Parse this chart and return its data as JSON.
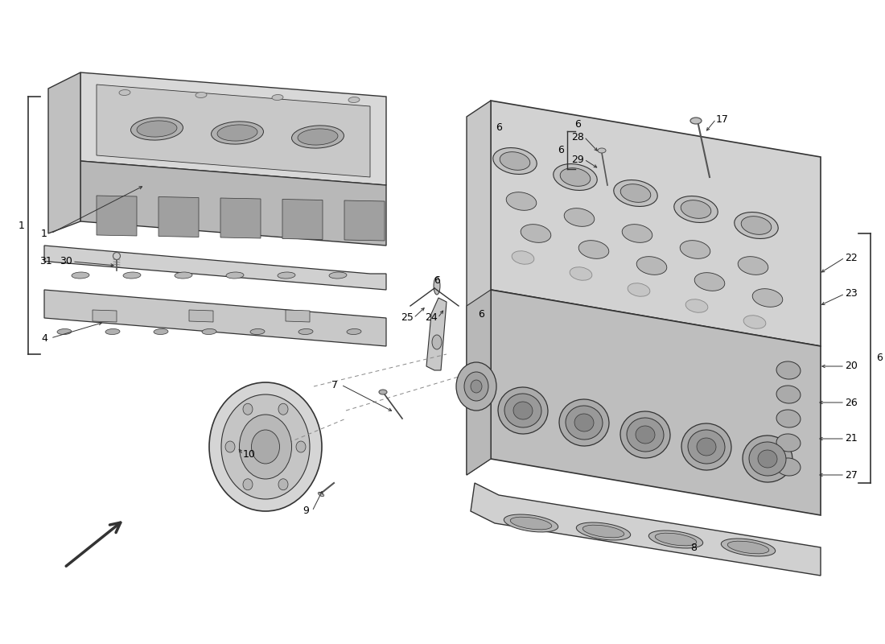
{
  "bg_color": "#ffffff",
  "line_color": "#444444",
  "fig_width": 11.0,
  "fig_height": 8.0,
  "dpi": 100,
  "gray_light": "#e2e2e2",
  "gray_mid": "#c8c8c8",
  "gray_dark": "#a8a8a8",
  "gray_darker": "#888888",
  "outline_color": "#333333"
}
